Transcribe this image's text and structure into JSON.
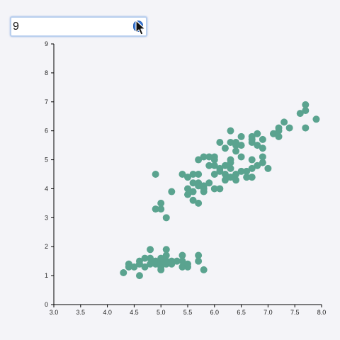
{
  "filter_input": {
    "value": "9"
  },
  "colors": {
    "point": "#5aa38f",
    "axis": "#000000",
    "input_border": "#b9cfee",
    "clear_button": "#3a79d8"
  },
  "icons": [
    "clear-button-icon",
    "mouse-pointer-icon"
  ],
  "chart_data": {
    "type": "scatter",
    "title": "",
    "xlabel": "",
    "ylabel": "",
    "xlim": [
      3.0,
      8.0
    ],
    "ylim": [
      0,
      9
    ],
    "xticks": [
      "3.0",
      "3.5",
      "4.0",
      "4.5",
      "5.0",
      "5.5",
      "6.0",
      "6.5",
      "7.0",
      "7.5",
      "8.0"
    ],
    "yticks": [
      "0",
      "1",
      "2",
      "3",
      "4",
      "5",
      "6",
      "7",
      "8",
      "9"
    ],
    "grid": false,
    "series": [
      {
        "points": [
          [
            4.3,
            1.1
          ],
          [
            4.4,
            1.3
          ],
          [
            4.4,
            1.4
          ],
          [
            4.5,
            1.3
          ],
          [
            4.6,
            1.0
          ],
          [
            4.6,
            1.4
          ],
          [
            4.6,
            1.5
          ],
          [
            4.7,
            1.3
          ],
          [
            4.7,
            1.6
          ],
          [
            4.8,
            1.4
          ],
          [
            4.8,
            1.6
          ],
          [
            4.8,
            1.9
          ],
          [
            4.9,
            1.4
          ],
          [
            4.9,
            1.5
          ],
          [
            5.0,
            1.2
          ],
          [
            5.0,
            1.3
          ],
          [
            5.0,
            1.4
          ],
          [
            5.0,
            1.5
          ],
          [
            5.0,
            1.6
          ],
          [
            5.1,
            1.4
          ],
          [
            5.1,
            1.5
          ],
          [
            5.1,
            1.7
          ],
          [
            5.1,
            1.9
          ],
          [
            5.2,
            1.4
          ],
          [
            5.2,
            1.5
          ],
          [
            5.3,
            1.5
          ],
          [
            5.4,
            1.3
          ],
          [
            5.4,
            1.5
          ],
          [
            5.4,
            1.7
          ],
          [
            5.5,
            1.3
          ],
          [
            5.5,
            1.4
          ],
          [
            5.7,
            1.5
          ],
          [
            5.7,
            1.7
          ],
          [
            5.8,
            1.2
          ],
          [
            4.9,
            3.3
          ],
          [
            5.0,
            3.3
          ],
          [
            5.0,
            3.5
          ],
          [
            5.1,
            3.0
          ],
          [
            4.9,
            4.5
          ],
          [
            5.2,
            3.9
          ],
          [
            5.4,
            4.5
          ],
          [
            5.5,
            3.8
          ],
          [
            5.5,
            4.0
          ],
          [
            5.5,
            4.4
          ],
          [
            5.6,
            3.6
          ],
          [
            5.6,
            3.9
          ],
          [
            5.6,
            4.2
          ],
          [
            5.6,
            4.5
          ],
          [
            5.7,
            3.5
          ],
          [
            5.7,
            4.1
          ],
          [
            5.7,
            4.2
          ],
          [
            5.7,
            4.5
          ],
          [
            5.7,
            5.0
          ],
          [
            5.8,
            3.9
          ],
          [
            5.8,
            4.0
          ],
          [
            5.8,
            4.1
          ],
          [
            5.8,
            5.1
          ],
          [
            5.9,
            4.2
          ],
          [
            5.9,
            4.8
          ],
          [
            5.9,
            5.1
          ],
          [
            6.0,
            4.0
          ],
          [
            6.0,
            4.5
          ],
          [
            6.0,
            4.8
          ],
          [
            6.0,
            5.0
          ],
          [
            6.0,
            5.1
          ],
          [
            6.1,
            4.0
          ],
          [
            6.1,
            4.6
          ],
          [
            6.1,
            4.7
          ],
          [
            6.1,
            5.6
          ],
          [
            6.2,
            4.3
          ],
          [
            6.2,
            4.5
          ],
          [
            6.2,
            4.8
          ],
          [
            6.2,
            5.4
          ],
          [
            6.3,
            4.4
          ],
          [
            6.3,
            4.7
          ],
          [
            6.3,
            4.9
          ],
          [
            6.3,
            5.0
          ],
          [
            6.3,
            5.6
          ],
          [
            6.3,
            6.0
          ],
          [
            6.4,
            4.3
          ],
          [
            6.4,
            4.5
          ],
          [
            6.4,
            5.3
          ],
          [
            6.4,
            5.5
          ],
          [
            6.4,
            5.6
          ],
          [
            6.5,
            4.6
          ],
          [
            6.5,
            5.1
          ],
          [
            6.5,
            5.5
          ],
          [
            6.5,
            5.8
          ],
          [
            6.6,
            4.4
          ],
          [
            6.6,
            4.6
          ],
          [
            6.7,
            4.4
          ],
          [
            6.7,
            4.7
          ],
          [
            6.7,
            5.0
          ],
          [
            6.7,
            5.6
          ],
          [
            6.7,
            5.7
          ],
          [
            6.7,
            5.8
          ],
          [
            6.8,
            4.8
          ],
          [
            6.8,
            5.5
          ],
          [
            6.8,
            5.9
          ],
          [
            6.9,
            4.9
          ],
          [
            6.9,
            5.1
          ],
          [
            6.9,
            5.4
          ],
          [
            6.9,
            5.7
          ],
          [
            7.0,
            4.7
          ],
          [
            7.1,
            5.9
          ],
          [
            7.2,
            5.8
          ],
          [
            7.2,
            6.0
          ],
          [
            7.2,
            6.1
          ],
          [
            7.3,
            6.3
          ],
          [
            7.4,
            6.1
          ],
          [
            7.6,
            6.6
          ],
          [
            7.7,
            6.1
          ],
          [
            7.7,
            6.7
          ],
          [
            7.7,
            6.9
          ],
          [
            7.9,
            6.4
          ]
        ]
      }
    ]
  }
}
